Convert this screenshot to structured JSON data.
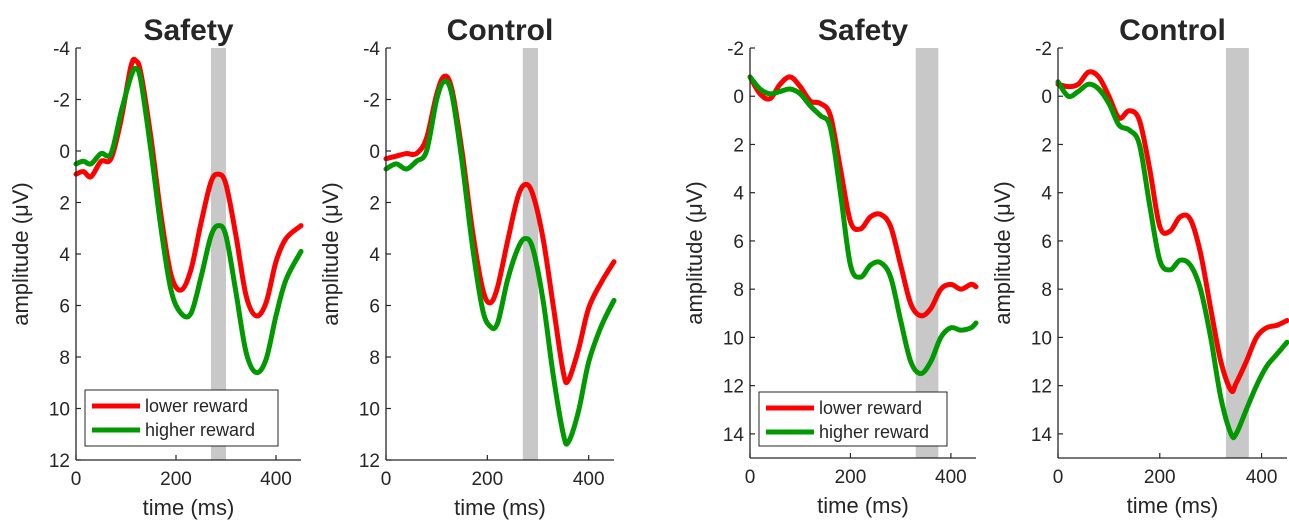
{
  "colors": {
    "lower": "#ff0000",
    "higher": "#009900",
    "window": "#c8c8c8",
    "axis": "#262626"
  },
  "chart_data": [
    {
      "type": "line",
      "title": "Safety",
      "xlabel": "time (ms)",
      "ylabel": "amplitude (μV)",
      "xlim": [
        0,
        450
      ],
      "ylim": [
        -4,
        12
      ],
      "y_reversed": true,
      "xticks": [
        0,
        200,
        400
      ],
      "yticks": [
        -4,
        -2,
        0,
        2,
        4,
        6,
        8,
        10,
        12
      ],
      "shaded_window": [
        270,
        300
      ],
      "legend": "bottom-left",
      "grid": false,
      "series": [
        {
          "name": "lower reward",
          "color": "#ff0000",
          "x": [
            0,
            15,
            30,
            50,
            70,
            90,
            110,
            120,
            130,
            150,
            170,
            190,
            210,
            230,
            250,
            270,
            285,
            300,
            320,
            340,
            360,
            380,
            400,
            420,
            450
          ],
          "y": [
            0.9,
            0.8,
            1.0,
            0.4,
            0.3,
            -1.2,
            -3.3,
            -3.5,
            -3.0,
            -0.5,
            2.5,
            4.8,
            5.4,
            4.6,
            2.8,
            1.2,
            0.9,
            1.3,
            3.3,
            5.6,
            6.4,
            5.9,
            4.3,
            3.4,
            2.9
          ]
        },
        {
          "name": "higher reward",
          "color": "#009900",
          "x": [
            0,
            15,
            30,
            50,
            70,
            90,
            110,
            120,
            130,
            150,
            170,
            190,
            210,
            230,
            250,
            270,
            285,
            300,
            320,
            340,
            360,
            380,
            400,
            420,
            450
          ],
          "y": [
            0.5,
            0.4,
            0.5,
            0.1,
            0.1,
            -1.5,
            -2.9,
            -3.2,
            -2.7,
            0.0,
            3.0,
            5.4,
            6.3,
            6.3,
            4.9,
            3.3,
            2.9,
            3.3,
            5.5,
            7.8,
            8.6,
            8.1,
            6.4,
            5.0,
            3.9
          ]
        }
      ]
    },
    {
      "type": "line",
      "title": "Control",
      "xlabel": "time (ms)",
      "ylabel": "amplitude (μV)",
      "xlim": [
        0,
        450
      ],
      "ylim": [
        -4,
        12
      ],
      "y_reversed": true,
      "xticks": [
        0,
        200,
        400
      ],
      "yticks": [
        -4,
        -2,
        0,
        2,
        4,
        6,
        8,
        10,
        12
      ],
      "shaded_window": [
        270,
        300
      ],
      "legend": "none",
      "grid": false,
      "series": [
        {
          "name": "lower reward",
          "color": "#ff0000",
          "x": [
            0,
            20,
            40,
            60,
            80,
            100,
            115,
            130,
            150,
            170,
            190,
            205,
            220,
            240,
            260,
            275,
            290,
            310,
            330,
            350,
            360,
            380,
            400,
            425,
            450
          ],
          "y": [
            0.3,
            0.2,
            0.1,
            0.1,
            -0.5,
            -2.2,
            -2.9,
            -2.4,
            0.0,
            3.0,
            5.3,
            5.9,
            5.3,
            3.5,
            1.8,
            1.3,
            1.7,
            3.4,
            6.0,
            8.6,
            8.9,
            7.7,
            6.1,
            5.1,
            4.3
          ]
        },
        {
          "name": "higher reward",
          "color": "#009900",
          "x": [
            0,
            20,
            40,
            60,
            80,
            100,
            115,
            130,
            150,
            170,
            190,
            205,
            220,
            240,
            260,
            275,
            290,
            310,
            330,
            350,
            360,
            380,
            400,
            425,
            450
          ],
          "y": [
            0.7,
            0.5,
            0.7,
            0.4,
            0.0,
            -2.0,
            -2.7,
            -2.2,
            0.4,
            3.6,
            6.1,
            6.8,
            6.7,
            5.0,
            3.8,
            3.4,
            3.8,
            5.8,
            8.7,
            11.0,
            11.3,
            10.1,
            8.2,
            6.8,
            5.8
          ]
        }
      ]
    },
    {
      "type": "line",
      "title": "Safety",
      "xlabel": "time (ms)",
      "ylabel": "amplitude (μV)",
      "xlim": [
        0,
        450
      ],
      "ylim": [
        -2,
        15
      ],
      "y_reversed": true,
      "xticks": [
        0,
        200,
        400
      ],
      "yticks": [
        -2,
        0,
        2,
        4,
        6,
        8,
        10,
        12,
        14
      ],
      "shaded_window": [
        330,
        375
      ],
      "legend": "bottom-left",
      "grid": false,
      "series": [
        {
          "name": "lower reward",
          "color": "#ff0000",
          "x": [
            0,
            20,
            40,
            60,
            80,
            100,
            120,
            140,
            160,
            180,
            200,
            220,
            240,
            260,
            280,
            300,
            320,
            340,
            360,
            380,
            400,
            420,
            440,
            450
          ],
          "y": [
            -0.8,
            -0.1,
            0.1,
            -0.5,
            -0.8,
            -0.4,
            0.2,
            0.3,
            0.8,
            3.0,
            5.2,
            5.5,
            5.0,
            4.9,
            5.4,
            7.0,
            8.6,
            9.1,
            8.8,
            8.0,
            7.8,
            8.0,
            7.8,
            7.9
          ]
        },
        {
          "name": "higher reward",
          "color": "#009900",
          "x": [
            0,
            20,
            40,
            60,
            80,
            100,
            120,
            140,
            160,
            180,
            200,
            220,
            240,
            260,
            280,
            300,
            320,
            340,
            360,
            380,
            400,
            420,
            440,
            450
          ],
          "y": [
            -0.8,
            -0.3,
            -0.1,
            -0.2,
            -0.3,
            -0.1,
            0.4,
            0.8,
            1.3,
            4.0,
            7.0,
            7.5,
            7.0,
            6.9,
            7.5,
            9.3,
            11.0,
            11.5,
            11.0,
            10.0,
            9.6,
            9.7,
            9.6,
            9.4
          ]
        }
      ]
    },
    {
      "type": "line",
      "title": "Control",
      "xlabel": "time (ms)",
      "ylabel": "amplitude (μV)",
      "xlim": [
        0,
        450
      ],
      "ylim": [
        -2,
        15
      ],
      "y_reversed": true,
      "xticks": [
        0,
        200,
        400
      ],
      "yticks": [
        -2,
        0,
        2,
        4,
        6,
        8,
        10,
        12,
        14
      ],
      "shaded_window": [
        330,
        375
      ],
      "legend": "none",
      "grid": false,
      "series": [
        {
          "name": "lower reward",
          "color": "#ff0000",
          "x": [
            0,
            20,
            40,
            60,
            80,
            100,
            120,
            140,
            160,
            180,
            200,
            220,
            240,
            260,
            280,
            300,
            320,
            340,
            350,
            370,
            390,
            410,
            430,
            450
          ],
          "y": [
            -0.5,
            -0.4,
            -0.5,
            -1.0,
            -0.8,
            0.0,
            0.9,
            0.6,
            1.0,
            3.0,
            5.4,
            5.6,
            5.0,
            5.1,
            6.5,
            8.8,
            11.0,
            12.2,
            11.9,
            11.0,
            10.0,
            9.6,
            9.5,
            9.3
          ]
        },
        {
          "name": "higher reward",
          "color": "#009900",
          "x": [
            0,
            20,
            40,
            60,
            80,
            100,
            120,
            140,
            160,
            180,
            200,
            220,
            240,
            260,
            280,
            300,
            320,
            340,
            350,
            370,
            390,
            410,
            430,
            450
          ],
          "y": [
            -0.6,
            0.0,
            -0.2,
            -0.5,
            -0.3,
            0.3,
            1.2,
            1.4,
            2.0,
            4.5,
            6.8,
            7.2,
            6.8,
            7.0,
            8.0,
            10.0,
            12.5,
            14.0,
            14.0,
            13.0,
            12.0,
            11.2,
            10.7,
            10.2
          ]
        }
      ]
    }
  ]
}
